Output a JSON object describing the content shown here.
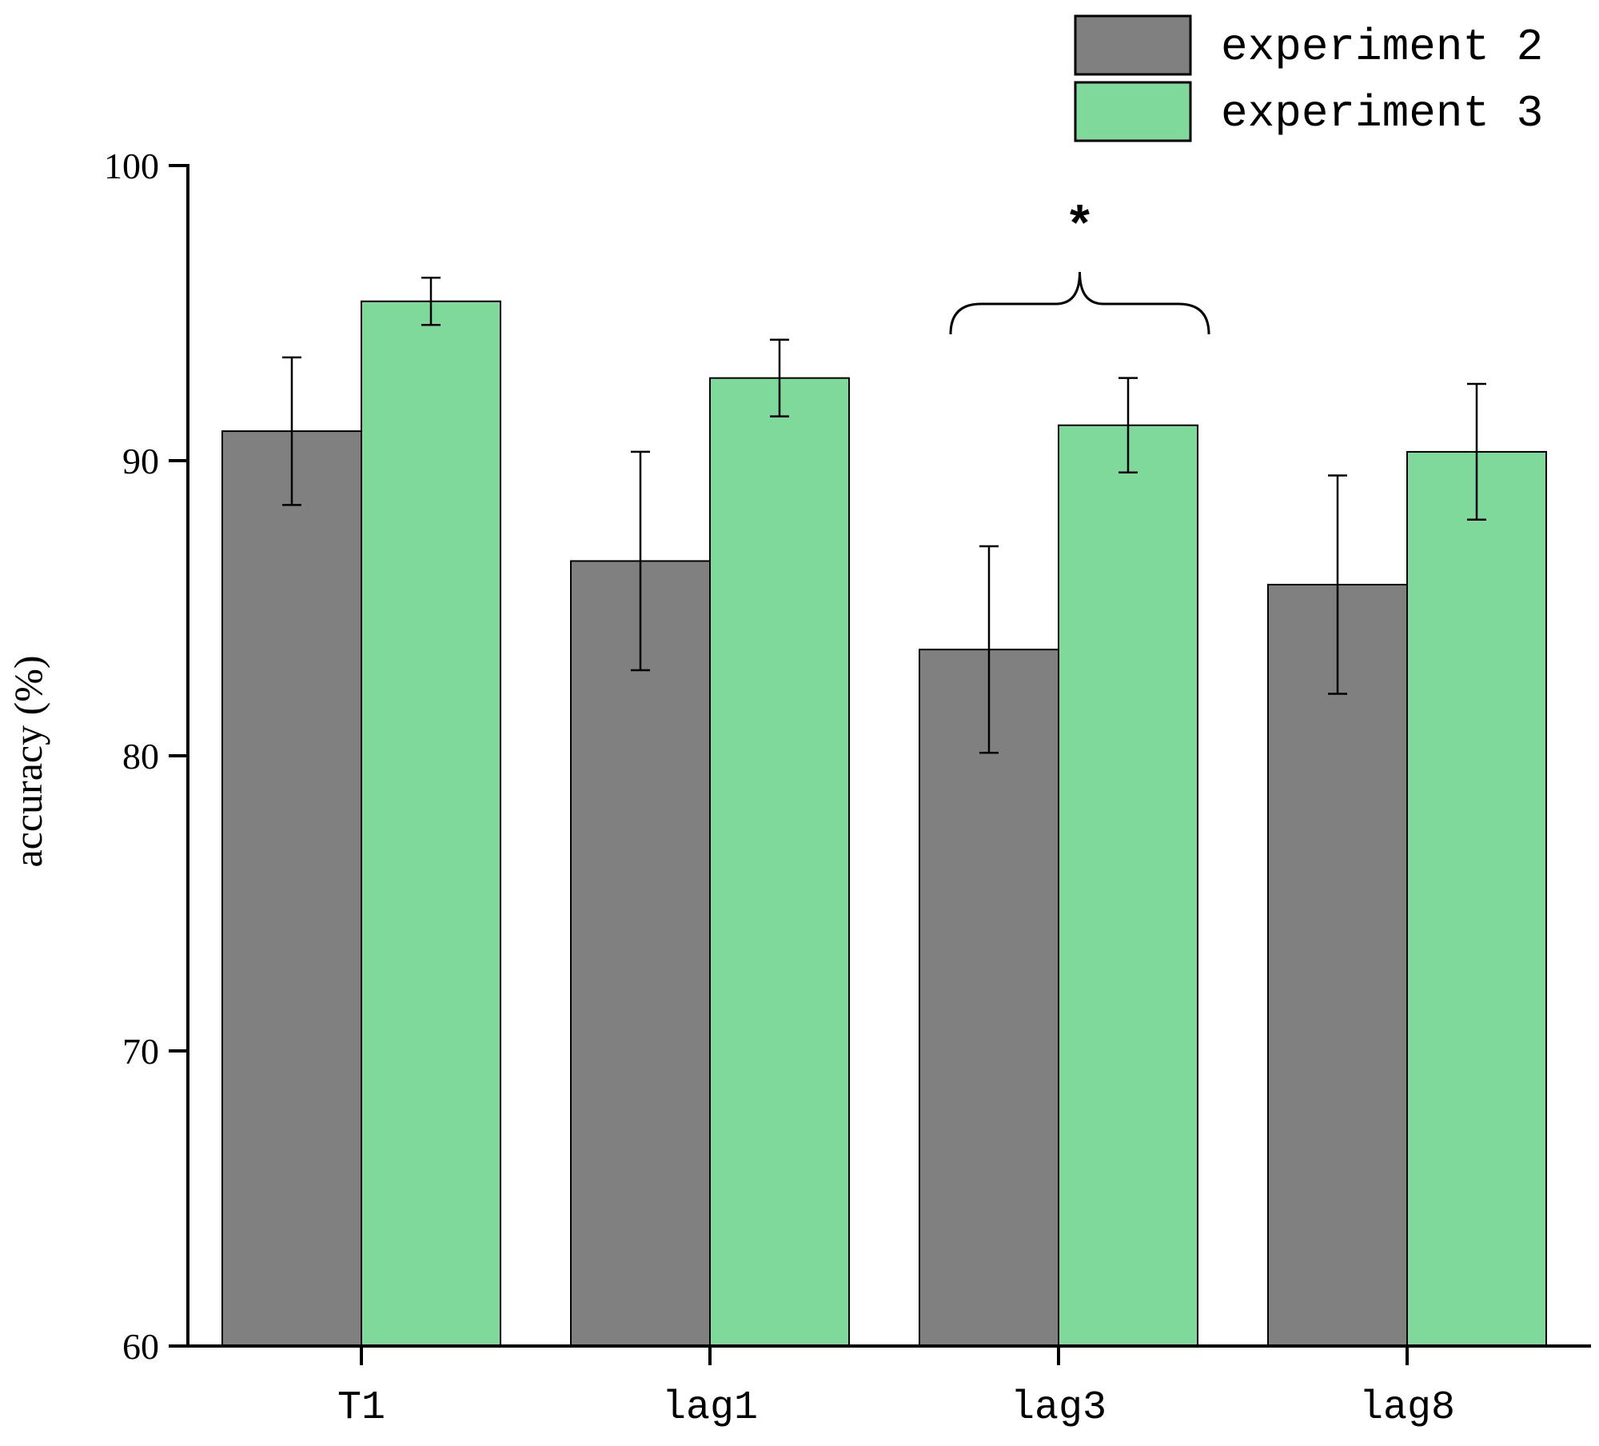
{
  "chart_data": {
    "type": "bar",
    "title": "",
    "xlabel": "",
    "ylabel": "accuracy (%)",
    "ylim": [
      60,
      100
    ],
    "yticks": [
      60,
      70,
      80,
      90,
      100
    ],
    "categories": [
      "T1",
      "lag1",
      "lag3",
      "lag8"
    ],
    "series": [
      {
        "name": "experiment 2",
        "color": "#808080",
        "values": [
          91.0,
          86.6,
          83.6,
          85.8
        ],
        "error": [
          2.5,
          3.7,
          3.5,
          3.7
        ]
      },
      {
        "name": "experiment 3",
        "color": "#7fd99b",
        "values": [
          95.4,
          92.8,
          91.2,
          90.3
        ],
        "error": [
          0.8,
          1.3,
          1.6,
          2.3
        ]
      }
    ],
    "legend": {
      "position": "top-right"
    },
    "annotations": [
      {
        "category": "lag3",
        "text": "*",
        "type": "significance-brace"
      }
    ]
  }
}
